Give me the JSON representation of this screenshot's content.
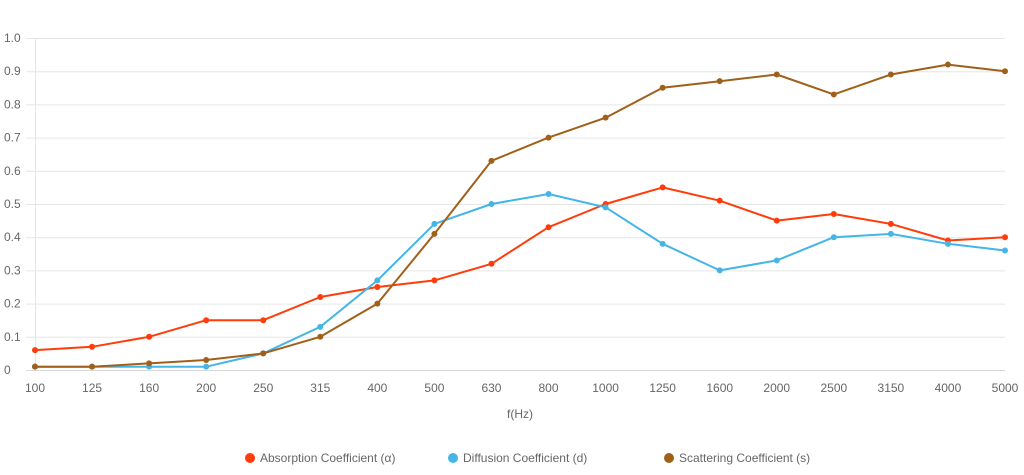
{
  "chart_data": {
    "type": "line",
    "title": "",
    "xlabel": "f(Hz)",
    "ylabel": "",
    "ylim": [
      0,
      1.0
    ],
    "yticks": [
      "0",
      "0.1",
      "0.2",
      "0.3",
      "0.4",
      "0.5",
      "0.6",
      "0.7",
      "0.8",
      "0.9",
      "1.0"
    ],
    "grid": true,
    "legend_position": "bottom-center",
    "categories": [
      "100",
      "125",
      "160",
      "200",
      "250",
      "315",
      "400",
      "500",
      "630",
      "800",
      "1000",
      "1250",
      "1600",
      "2000",
      "2500",
      "3150",
      "4000",
      "5000"
    ],
    "series": [
      {
        "name": "Absorption Coefficient (α)",
        "color": "#ff3c0a",
        "values": [
          0.06,
          0.07,
          0.1,
          0.15,
          0.15,
          0.22,
          0.25,
          0.27,
          0.32,
          0.43,
          0.5,
          0.55,
          0.51,
          0.45,
          0.47,
          0.44,
          0.39,
          0.4
        ]
      },
      {
        "name": "Diffusion Coefficient (d)",
        "color": "#45b5e6",
        "values": [
          0.01,
          0.01,
          0.01,
          0.01,
          0.05,
          0.13,
          0.27,
          0.44,
          0.5,
          0.53,
          0.49,
          0.38,
          0.3,
          0.33,
          0.4,
          0.41,
          0.38,
          0.36
        ]
      },
      {
        "name": "Scattering Coefficient (s)",
        "color": "#a0601a",
        "values": [
          0.01,
          0.01,
          0.02,
          0.03,
          0.05,
          0.1,
          0.2,
          0.41,
          0.63,
          0.7,
          0.76,
          0.85,
          0.87,
          0.89,
          0.83,
          0.89,
          0.92,
          0.9
        ]
      }
    ]
  }
}
